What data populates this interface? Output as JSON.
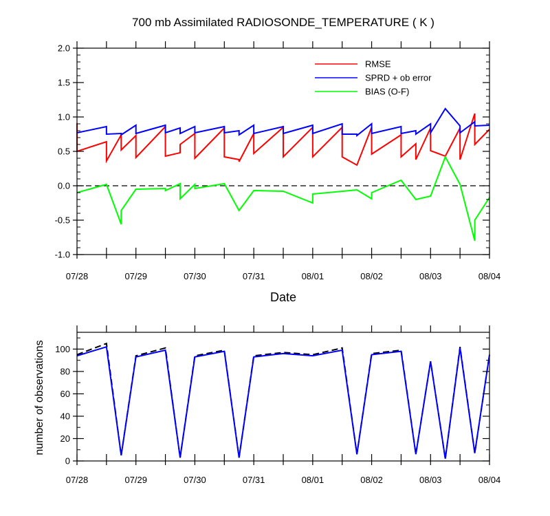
{
  "chart_data": [
    {
      "type": "line",
      "title": "700 mb Assimilated RADIOSONDE_TEMPERATURE ( K )",
      "xlabel": "Date",
      "ylabel": "",
      "xlim": [
        0,
        7
      ],
      "ylim": [
        -1.0,
        2.0
      ],
      "x_tick_labels": [
        "07/28",
        "07/29",
        "07/30",
        "07/31",
        "08/01",
        "08/02",
        "08/03",
        "08/04"
      ],
      "y_ticks": [
        -1.0,
        -0.5,
        0.0,
        0.5,
        1.0,
        1.5,
        2.0
      ],
      "y_tick_labels": [
        "-1.0",
        "-0.5",
        "0.0",
        "0.5",
        "1.0",
        "1.5",
        "2.0"
      ],
      "zero_line": true,
      "legend": "top-right",
      "series": [
        {
          "name": "RMSE",
          "color": "#ff0000",
          "points": [
            [
              0,
              0.91
            ],
            [
              0,
              0.5
            ],
            [
              0.5,
              0.64
            ],
            [
              0.5,
              0.36
            ],
            [
              0.75,
              0.74
            ],
            [
              0.75,
              0.52
            ],
            [
              1,
              0.73
            ],
            [
              1,
              0.41
            ],
            [
              1.5,
              0.86
            ],
            [
              1.5,
              0.43
            ],
            [
              1.75,
              0.48
            ],
            [
              1.75,
              0.6
            ],
            [
              2,
              0.76
            ],
            [
              2,
              0.4
            ],
            [
              2.5,
              0.84
            ],
            [
              2.5,
              0.42
            ],
            [
              2.75,
              0.38
            ],
            [
              2.75,
              0.35
            ],
            [
              3,
              0.76
            ],
            [
              3,
              0.47
            ],
            [
              3.5,
              0.85
            ],
            [
              3.5,
              0.42
            ],
            [
              4,
              0.85
            ],
            [
              4,
              0.42
            ],
            [
              4.5,
              0.85
            ],
            [
              4.5,
              0.42
            ],
            [
              4.75,
              0.3
            ],
            [
              5,
              0.85
            ],
            [
              5,
              0.46
            ],
            [
              5.5,
              0.74
            ],
            [
              5.5,
              0.42
            ],
            [
              5.75,
              0.61
            ],
            [
              5.75,
              0.38
            ],
            [
              6,
              0.84
            ],
            [
              6,
              0.51
            ],
            [
              6.25,
              0.43
            ],
            [
              6.5,
              0.84
            ],
            [
              6.5,
              0.38
            ],
            [
              6.75,
              1.05
            ],
            [
              6.75,
              0.6
            ],
            [
              7,
              0.82
            ]
          ]
        },
        {
          "name": "SPRD + ob error",
          "color": "#0000ff",
          "points": [
            [
              0,
              0.77
            ],
            [
              0.5,
              0.86
            ],
            [
              0.5,
              0.75
            ],
            [
              0.75,
              0.76
            ],
            [
              0.75,
              0.74
            ],
            [
              1,
              0.88
            ],
            [
              1,
              0.76
            ],
            [
              1.5,
              0.88
            ],
            [
              1.5,
              0.77
            ],
            [
              1.75,
              0.84
            ],
            [
              1.75,
              0.76
            ],
            [
              2,
              0.86
            ],
            [
              2,
              0.77
            ],
            [
              2.5,
              0.86
            ],
            [
              2.5,
              0.77
            ],
            [
              2.75,
              0.8
            ],
            [
              2.75,
              0.74
            ],
            [
              3,
              0.88
            ],
            [
              3,
              0.76
            ],
            [
              3.5,
              0.86
            ],
            [
              3.5,
              0.76
            ],
            [
              4,
              0.88
            ],
            [
              4,
              0.76
            ],
            [
              4.5,
              0.9
            ],
            [
              4.5,
              0.75
            ],
            [
              4.75,
              0.75
            ],
            [
              4.75,
              0.73
            ],
            [
              5,
              0.9
            ],
            [
              5,
              0.76
            ],
            [
              5.5,
              0.86
            ],
            [
              5.5,
              0.76
            ],
            [
              5.75,
              0.8
            ],
            [
              5.75,
              0.75
            ],
            [
              6,
              0.9
            ],
            [
              6,
              0.77
            ],
            [
              6.25,
              1.12
            ],
            [
              6.5,
              0.87
            ],
            [
              6.5,
              0.77
            ],
            [
              6.75,
              0.93
            ],
            [
              6.75,
              0.87
            ],
            [
              7,
              0.88
            ]
          ]
        },
        {
          "name": "BIAS (O-F)",
          "color": "#00ff00",
          "points": [
            [
              0,
              -0.1
            ],
            [
              0.5,
              0.02
            ],
            [
              0.75,
              -0.56
            ],
            [
              0.75,
              -0.36
            ],
            [
              1,
              -0.05
            ],
            [
              1.5,
              -0.04
            ],
            [
              1.5,
              -0.07
            ],
            [
              1.75,
              0.03
            ],
            [
              1.75,
              -0.19
            ],
            [
              2,
              0.02
            ],
            [
              2,
              -0.04
            ],
            [
              2.5,
              0.03
            ],
            [
              2.75,
              -0.36
            ],
            [
              3,
              -0.07
            ],
            [
              3.5,
              -0.08
            ],
            [
              4,
              -0.25
            ],
            [
              4,
              -0.12
            ],
            [
              4.75,
              -0.06
            ],
            [
              5,
              -0.19
            ],
            [
              5,
              -0.1
            ],
            [
              5.5,
              0.08
            ],
            [
              5.75,
              -0.2
            ],
            [
              6,
              -0.15
            ],
            [
              6.25,
              0.42
            ],
            [
              6.5,
              0.02
            ],
            [
              6.75,
              -0.8
            ],
            [
              6.75,
              -0.5
            ],
            [
              7,
              -0.17
            ]
          ]
        }
      ]
    },
    {
      "type": "line",
      "title": "",
      "xlabel": "",
      "ylabel": "number of observations",
      "xlim": [
        0,
        7
      ],
      "ylim": [
        0,
        115
      ],
      "x_tick_labels": [
        "07/28",
        "07/29",
        "07/30",
        "07/31",
        "08/01",
        "08/02",
        "08/03",
        "08/04"
      ],
      "y_ticks": [
        0,
        20,
        40,
        60,
        80,
        100
      ],
      "y_tick_labels": [
        "0",
        "20",
        "40",
        "60",
        "80",
        "100"
      ],
      "series": [
        {
          "color": "#000000",
          "dash": true,
          "points": [
            [
              0,
              95
            ],
            [
              0.5,
              105
            ],
            [
              0.75,
              5
            ],
            [
              1,
              94
            ],
            [
              1.5,
              101
            ],
            [
              1.75,
              3
            ],
            [
              2,
              94
            ],
            [
              2.5,
              99
            ],
            [
              2.75,
              3
            ],
            [
              3,
              94
            ],
            [
              3.5,
              97
            ],
            [
              4,
              95
            ],
            [
              4.5,
              101
            ],
            [
              4.75,
              6
            ],
            [
              5,
              96
            ],
            [
              5.5,
              99
            ],
            [
              5.75,
              6
            ],
            [
              6,
              89
            ],
            [
              6.25,
              2
            ],
            [
              6.5,
              102
            ],
            [
              6.75,
              7
            ],
            [
              7,
              95
            ]
          ]
        },
        {
          "color": "#0000ff",
          "dash": false,
          "points": [
            [
              0,
              94
            ],
            [
              0.5,
              102
            ],
            [
              0.75,
              5
            ],
            [
              1,
              93
            ],
            [
              1.5,
              99
            ],
            [
              1.75,
              3
            ],
            [
              2,
              93
            ],
            [
              2.5,
              98
            ],
            [
              2.75,
              3
            ],
            [
              3,
              93
            ],
            [
              3.5,
              96
            ],
            [
              4,
              94
            ],
            [
              4.5,
              99
            ],
            [
              4.75,
              6
            ],
            [
              5,
              95
            ],
            [
              5.5,
              98
            ],
            [
              5.75,
              6
            ],
            [
              6,
              89
            ],
            [
              6.25,
              2
            ],
            [
              6.5,
              101
            ],
            [
              6.75,
              7
            ],
            [
              7,
              95
            ]
          ]
        }
      ]
    }
  ]
}
